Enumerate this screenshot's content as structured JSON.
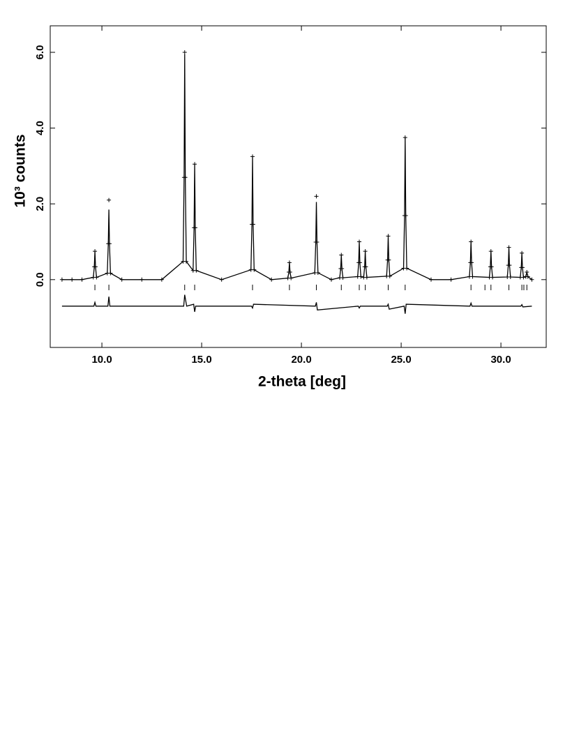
{
  "chart_data": {
    "type": "rietveld",
    "xlabel": "2-theta [deg]",
    "ylabel": "10³ counts",
    "xlim": [
      7.41,
      32.27
    ],
    "ylim": [
      -1.79,
      6.7
    ],
    "xticks": [
      {
        "value": 10,
        "label": "10.0"
      },
      {
        "value": 15,
        "label": "15.0"
      },
      {
        "value": 20,
        "label": "20.0"
      },
      {
        "value": 25,
        "label": "25.0"
      },
      {
        "value": 30,
        "label": "30.0"
      }
    ],
    "yticks": [
      {
        "value": 0,
        "label": "0.0"
      },
      {
        "value": 2,
        "label": "2.0"
      },
      {
        "value": 4,
        "label": "4.0"
      },
      {
        "value": 6,
        "label": "6.0"
      }
    ],
    "color": "#000000",
    "series": [
      {
        "marker": "cross",
        "x": [
          8.0,
          8.5,
          9.0,
          9.57,
          9.62,
          9.65,
          9.68,
          9.73,
          10.27,
          10.32,
          10.35,
          10.38,
          10.43,
          11.0,
          12.0,
          13.0,
          14.07,
          14.12,
          14.15,
          14.18,
          14.23,
          14.57,
          14.62,
          14.65,
          14.68,
          14.73,
          16.0,
          17.47,
          17.52,
          17.55,
          17.58,
          17.63,
          18.5,
          19.32,
          19.37,
          19.4,
          19.43,
          19.48,
          20.67,
          20.72,
          20.75,
          20.78,
          20.83,
          21.5,
          21.92,
          21.97,
          22.0,
          22.03,
          22.08,
          22.82,
          22.87,
          22.9,
          22.93,
          22.98,
          23.12,
          23.17,
          23.2,
          23.23,
          23.28,
          24.27,
          24.32,
          24.35,
          24.38,
          24.43,
          25.12,
          25.17,
          25.2,
          25.23,
          25.28,
          26.5,
          27.5,
          28.42,
          28.47,
          28.5,
          28.53,
          28.58,
          29.42,
          29.47,
          29.5,
          29.53,
          29.58,
          30.32,
          30.37,
          30.4,
          30.43,
          30.48,
          30.97,
          31.02,
          31.05,
          31.08,
          31.13,
          31.25,
          31.3,
          31.35,
          31.55
        ],
        "values": [
          0,
          0,
          0,
          0.06,
          0.34,
          0.75,
          0.34,
          0.06,
          0.17,
          0.95,
          2.1,
          0.95,
          0.17,
          0,
          0,
          0,
          0.48,
          2.7,
          6.0,
          2.7,
          0.48,
          0.24,
          1.37,
          3.05,
          1.37,
          0.24,
          0,
          0.26,
          1.46,
          3.25,
          1.46,
          0.26,
          0,
          0.04,
          0.2,
          0.45,
          0.2,
          0.04,
          0.18,
          0.99,
          2.2,
          0.99,
          0.18,
          0,
          0.05,
          0.29,
          0.65,
          0.29,
          0.05,
          0.08,
          0.45,
          1.0,
          0.45,
          0.08,
          0.06,
          0.34,
          0.75,
          0.34,
          0.06,
          0.09,
          0.52,
          1.15,
          0.52,
          0.09,
          0.3,
          1.69,
          3.75,
          1.69,
          0.3,
          0,
          0,
          0.08,
          0.45,
          1.0,
          0.45,
          0.08,
          0.06,
          0.34,
          0.75,
          0.34,
          0.06,
          0.07,
          0.38,
          0.85,
          0.38,
          0.07,
          0.06,
          0.32,
          0.7,
          0.32,
          0.06,
          0.08,
          0.2,
          0.08,
          0
        ]
      },
      {
        "marker": "line",
        "x": [
          8.0,
          8.5,
          9.0,
          9.57,
          9.62,
          9.65,
          9.68,
          9.73,
          10.27,
          10.32,
          10.35,
          10.38,
          10.43,
          11.0,
          12.0,
          13.0,
          14.07,
          14.12,
          14.15,
          14.18,
          14.23,
          14.57,
          14.62,
          14.65,
          14.68,
          14.73,
          16.0,
          17.47,
          17.52,
          17.55,
          17.58,
          17.63,
          18.5,
          19.32,
          19.37,
          19.4,
          19.43,
          19.48,
          20.67,
          20.72,
          20.75,
          20.78,
          20.83,
          21.5,
          21.92,
          21.97,
          22.0,
          22.03,
          22.08,
          22.82,
          22.87,
          22.9,
          22.93,
          22.98,
          23.12,
          23.17,
          23.2,
          23.23,
          23.28,
          24.27,
          24.32,
          24.35,
          24.38,
          24.43,
          25.12,
          25.17,
          25.2,
          25.23,
          25.28,
          26.5,
          27.5,
          28.42,
          28.47,
          28.5,
          28.53,
          28.58,
          29.42,
          29.47,
          29.5,
          29.53,
          29.58,
          30.32,
          30.37,
          30.4,
          30.43,
          30.48,
          30.97,
          31.02,
          31.05,
          31.08,
          31.13,
          31.25,
          31.3,
          31.35,
          31.55
        ],
        "values": [
          0,
          0,
          0,
          0.06,
          0.34,
          0.75,
          0.34,
          0.06,
          0.17,
          0.95,
          1.85,
          0.95,
          0.17,
          0,
          0,
          0,
          0.48,
          2.7,
          5.95,
          2.7,
          0.48,
          0.24,
          1.37,
          3.05,
          1.37,
          0.24,
          0,
          0.26,
          1.46,
          3.25,
          1.46,
          0.26,
          0,
          0.04,
          0.2,
          0.45,
          0.2,
          0.04,
          0.18,
          0.99,
          2.05,
          0.99,
          0.18,
          0,
          0.05,
          0.29,
          0.65,
          0.29,
          0.05,
          0.08,
          0.45,
          1.0,
          0.45,
          0.08,
          0.06,
          0.34,
          0.75,
          0.34,
          0.06,
          0.09,
          0.52,
          1.15,
          0.52,
          0.09,
          0.3,
          1.69,
          3.75,
          1.69,
          0.3,
          0,
          0,
          0.08,
          0.45,
          1.0,
          0.45,
          0.08,
          0.06,
          0.34,
          0.75,
          0.34,
          0.06,
          0.07,
          0.38,
          0.85,
          0.38,
          0.07,
          0.06,
          0.32,
          0.7,
          0.32,
          0.06,
          0.08,
          0.2,
          0.08,
          0
        ]
      },
      {
        "marker": "line",
        "x": [
          8.0,
          9.6,
          9.65,
          9.7,
          10.3,
          10.35,
          10.4,
          14.1,
          14.15,
          14.25,
          14.6,
          14.65,
          14.7,
          17.5,
          17.55,
          17.6,
          20.7,
          20.75,
          20.8,
          22.85,
          22.9,
          22.95,
          24.3,
          24.35,
          24.4,
          25.15,
          25.2,
          25.25,
          28.45,
          28.5,
          28.55,
          31.0,
          31.05,
          31.1,
          31.55
        ],
        "values": [
          -0.7,
          -0.7,
          -0.6,
          -0.7,
          -0.7,
          -0.45,
          -0.7,
          -0.7,
          -0.4,
          -0.7,
          -0.65,
          -0.85,
          -0.7,
          -0.7,
          -0.75,
          -0.65,
          -0.7,
          -0.6,
          -0.8,
          -0.7,
          -0.75,
          -0.7,
          -0.7,
          -0.65,
          -0.78,
          -0.7,
          -0.9,
          -0.65,
          -0.7,
          -0.62,
          -0.7,
          -0.7,
          -0.66,
          -0.72,
          -0.7
        ]
      }
    ],
    "reflections": [
      9.65,
      10.35,
      14.15,
      14.65,
      17.55,
      19.4,
      20.75,
      22.0,
      22.9,
      23.2,
      24.35,
      25.2,
      28.5,
      29.2,
      29.5,
      30.4,
      31.05,
      31.15,
      31.3
    ]
  }
}
